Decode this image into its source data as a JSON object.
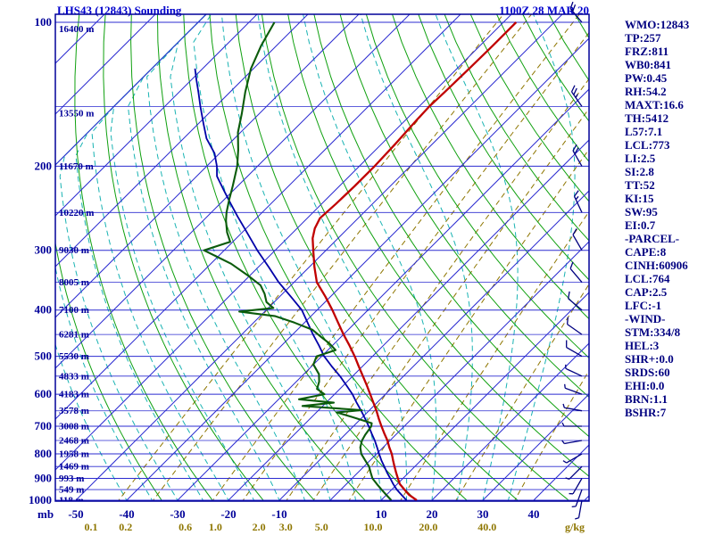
{
  "header": {
    "title": "LHS43 (12843) Sounding",
    "datetime": "1100Z 28 MAR 20"
  },
  "axes": {
    "pressure_unit": "mb",
    "mixing_unit": "g/kg"
  },
  "stats_panel": {
    "lines": [
      "WMO:12843",
      "TP:257",
      "FRZ:811",
      "WB0:841",
      "PW:0.45",
      "RH:54.2",
      "MAXT:16.6",
      "TH:5412",
      "L57:7.1",
      "LCL:773",
      "LI:2.5",
      "SI:2.8",
      "TT:52",
      "KI:15",
      "SW:95",
      "EI:0.7",
      "-PARCEL-",
      "CAPE:8",
      "CINH:60906",
      "LCL:764",
      "CAP:2.5",
      "LFC:-1",
      "-WIND-",
      "STM:334/8",
      "HEL:3",
      "SHR+:0.0",
      "SRDS:60",
      "EHI:0.0",
      "BRN:1.1",
      "BSHR:7"
    ]
  },
  "chart_data": {
    "type": "skewt",
    "title": "LHS43 (12843) Sounding",
    "pressure_range": [
      100,
      1000
    ],
    "temp_axis": {
      "min": -50,
      "max": 40,
      "unit": "C"
    },
    "grid": true,
    "pressure_ticks": [
      100,
      200,
      300,
      400,
      500,
      600,
      700,
      800,
      900,
      1000
    ],
    "temp_ticks": [
      -50,
      -40,
      -30,
      -20,
      -10,
      10,
      20,
      30,
      40
    ],
    "height_labels": [
      [
        100,
        "16400 m"
      ],
      [
        150,
        "13550 m"
      ],
      [
        200,
        "11670 m"
      ],
      [
        250,
        "10220 m"
      ],
      [
        300,
        "9030 m"
      ],
      [
        350,
        "8005 m"
      ],
      [
        400,
        "7100 m"
      ],
      [
        450,
        "6281 m"
      ],
      [
        500,
        "5530 m"
      ],
      [
        550,
        "4833 m"
      ],
      [
        600,
        "4183 m"
      ],
      [
        650,
        "3578 m"
      ],
      [
        700,
        "3008 m"
      ],
      [
        750,
        "2468 m"
      ],
      [
        800,
        "1958 m"
      ],
      [
        850,
        "1469 m"
      ],
      [
        900,
        "993 m"
      ],
      [
        950,
        "549 m"
      ],
      [
        1000,
        "118 m"
      ]
    ],
    "mixing_ratio_lines": [
      [
        0.1,
        "0.1"
      ],
      [
        0.2,
        "0.2"
      ],
      [
        0.6,
        "0.6"
      ],
      [
        1,
        "1.0"
      ],
      [
        2,
        "2.0"
      ],
      [
        3,
        "3.0"
      ],
      [
        5,
        "5.0"
      ],
      [
        10,
        "10.0"
      ],
      [
        20,
        "20.0"
      ],
      [
        40,
        "40.0"
      ]
    ],
    "dry_adiabats": {
      "start": 240,
      "end": 440,
      "step": 10
    },
    "moist_adiabats": {
      "start": -40,
      "end": 35,
      "step": 5
    },
    "isotherms": {
      "start": -150,
      "end": 50,
      "step": 10
    },
    "temperature_profile": [
      [
        1000,
        17
      ],
      [
        975,
        14.5
      ],
      [
        950,
        12.5
      ],
      [
        925,
        10.5
      ],
      [
        900,
        9
      ],
      [
        875,
        7.5
      ],
      [
        850,
        6
      ],
      [
        825,
        4.5
      ],
      [
        800,
        3
      ],
      [
        775,
        1.2
      ],
      [
        750,
        -0.5
      ],
      [
        725,
        -2.5
      ],
      [
        700,
        -4.5
      ],
      [
        675,
        -6.5
      ],
      [
        650,
        -8.5
      ],
      [
        625,
        -10.7
      ],
      [
        600,
        -13
      ],
      [
        575,
        -15.4
      ],
      [
        550,
        -18
      ],
      [
        525,
        -20.7
      ],
      [
        500,
        -23.5
      ],
      [
        475,
        -26.6
      ],
      [
        450,
        -30
      ],
      [
        425,
        -33.4
      ],
      [
        400,
        -37
      ],
      [
        375,
        -41
      ],
      [
        350,
        -45.5
      ],
      [
        325,
        -49
      ],
      [
        300,
        -52.5
      ],
      [
        283,
        -55
      ],
      [
        270,
        -56.5
      ],
      [
        257,
        -57.5
      ],
      [
        240,
        -57.2
      ],
      [
        220,
        -57
      ],
      [
        200,
        -57
      ],
      [
        180,
        -57.3
      ],
      [
        160,
        -57.8
      ],
      [
        150,
        -58
      ],
      [
        140,
        -57.8
      ],
      [
        125,
        -57.6
      ],
      [
        112,
        -57.5
      ],
      [
        100,
        -57.5
      ]
    ],
    "dewpoint_profile": [
      [
        1000,
        12
      ],
      [
        975,
        10
      ],
      [
        950,
        8
      ],
      [
        925,
        6
      ],
      [
        900,
        4
      ],
      [
        875,
        2.5
      ],
      [
        850,
        1
      ],
      [
        825,
        -1
      ],
      [
        800,
        -3
      ],
      [
        775,
        -4.5
      ],
      [
        750,
        -5.5
      ],
      [
        730,
        -6
      ],
      [
        710,
        -6.3
      ],
      [
        700,
        -6.5
      ],
      [
        690,
        -7
      ],
      [
        670,
        -12
      ],
      [
        655,
        -16
      ],
      [
        648,
        -11.5
      ],
      [
        635,
        -24
      ],
      [
        625,
        -18.5
      ],
      [
        615,
        -26
      ],
      [
        600,
        -22
      ],
      [
        585,
        -24.5
      ],
      [
        565,
        -25.5
      ],
      [
        545,
        -27
      ],
      [
        520,
        -30
      ],
      [
        500,
        -31
      ],
      [
        485,
        -28.5
      ],
      [
        470,
        -31
      ],
      [
        455,
        -34
      ],
      [
        440,
        -37
      ],
      [
        425,
        -42
      ],
      [
        412,
        -47
      ],
      [
        403,
        -55
      ],
      [
        396,
        -49
      ],
      [
        385,
        -51.5
      ],
      [
        370,
        -53.5
      ],
      [
        355,
        -56
      ],
      [
        340,
        -60
      ],
      [
        320,
        -66
      ],
      [
        300,
        -74
      ],
      [
        288,
        -70.5
      ],
      [
        275,
        -73
      ],
      [
        260,
        -75.5
      ],
      [
        250,
        -77
      ],
      [
        235,
        -79
      ],
      [
        220,
        -81
      ],
      [
        200,
        -84
      ],
      [
        185,
        -87
      ],
      [
        170,
        -90.5
      ],
      [
        155,
        -93.5
      ],
      [
        140,
        -97
      ],
      [
        125,
        -100.5
      ],
      [
        112,
        -103
      ],
      [
        100,
        -105
      ]
    ],
    "wetbulb_profile": [
      [
        1000,
        15
      ],
      [
        975,
        13
      ],
      [
        950,
        11
      ],
      [
        925,
        9.2
      ],
      [
        900,
        7.5
      ],
      [
        875,
        5.7
      ],
      [
        850,
        4
      ],
      [
        825,
        2.2
      ],
      [
        800,
        0.5
      ],
      [
        775,
        -1.2
      ],
      [
        750,
        -3
      ],
      [
        725,
        -5
      ],
      [
        700,
        -7
      ],
      [
        675,
        -9.2
      ],
      [
        650,
        -11.5
      ],
      [
        625,
        -14
      ],
      [
        600,
        -16.5
      ],
      [
        575,
        -19.4
      ],
      [
        550,
        -22.5
      ],
      [
        525,
        -26
      ],
      [
        500,
        -29.5
      ],
      [
        475,
        -32.6
      ],
      [
        450,
        -36
      ],
      [
        425,
        -39.4
      ],
      [
        400,
        -43
      ],
      [
        375,
        -47.8
      ],
      [
        350,
        -53
      ],
      [
        325,
        -58
      ],
      [
        300,
        -63.5
      ],
      [
        285,
        -66.8
      ],
      [
        270,
        -70.3
      ],
      [
        255,
        -74
      ],
      [
        240,
        -77.8
      ],
      [
        225,
        -81.8
      ],
      [
        210,
        -86
      ],
      [
        200,
        -88
      ],
      [
        188,
        -91
      ],
      [
        175,
        -95.5
      ],
      [
        163,
        -99
      ],
      [
        150,
        -103
      ],
      [
        140,
        -106.2
      ],
      [
        132,
        -109
      ],
      [
        125,
        -111.5
      ]
    ],
    "wind_barbs": [
      [
        100,
        320,
        20
      ],
      [
        150,
        325,
        25
      ],
      [
        200,
        330,
        20
      ],
      [
        250,
        335,
        15
      ],
      [
        300,
        330,
        10
      ],
      [
        350,
        320,
        10
      ],
      [
        400,
        310,
        10
      ],
      [
        450,
        305,
        10
      ],
      [
        500,
        300,
        10
      ],
      [
        550,
        295,
        5
      ],
      [
        600,
        290,
        5
      ],
      [
        650,
        280,
        5
      ],
      [
        700,
        270,
        5
      ],
      [
        750,
        260,
        5
      ],
      [
        800,
        240,
        5
      ],
      [
        850,
        225,
        5
      ],
      [
        900,
        210,
        5
      ],
      [
        950,
        200,
        5
      ],
      [
        1000,
        190,
        5
      ]
    ],
    "colors": {
      "isobar": "#2b2bd0",
      "isotherm": "#2b2bd0",
      "border": "#000099",
      "dry_adiabat": "#0FA00F",
      "moist_adiabat": "#19B3B3",
      "mixing_ratio": "#8E7600",
      "mixing_label": "#8E7600",
      "axis_text": "#000099",
      "temperature": "#C00000",
      "dewpoint": "#0B5B0B",
      "wetbulb": "#0000A8",
      "wind_barb": "#000080",
      "title": "#0000CC",
      "stats_text": "#000080"
    }
  }
}
